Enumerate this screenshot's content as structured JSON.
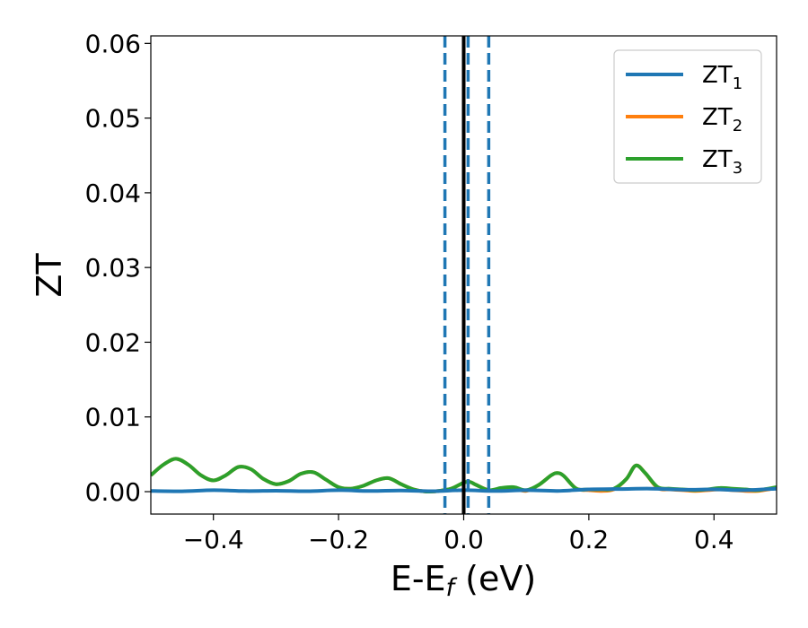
{
  "chart_data": {
    "type": "line",
    "xlabel": "E-E_f (eV)",
    "xlabel_parts": {
      "main": "E-E",
      "sub": "f",
      "tail": " (eV)"
    },
    "ylabel": "ZT",
    "xlim": [
      -0.5,
      0.5
    ],
    "ylim": [
      -0.003,
      0.061
    ],
    "x_ticks": [
      -0.4,
      -0.2,
      0.0,
      0.2,
      0.4
    ],
    "x_tick_labels": [
      "−0.4",
      "−0.2",
      "0.0",
      "0.2",
      "0.4"
    ],
    "y_ticks": [
      0.0,
      0.01,
      0.02,
      0.03,
      0.04,
      0.05,
      0.06
    ],
    "y_tick_labels": [
      "0.00",
      "0.01",
      "0.02",
      "0.03",
      "0.04",
      "0.05",
      "0.06"
    ],
    "grid": false,
    "legend_position": "top-right",
    "vertical_lines": [
      {
        "x": 0.0,
        "style": "solid",
        "color": "#000000"
      },
      {
        "x": -0.03,
        "style": "dashed",
        "color": "#1f77b4"
      },
      {
        "x": 0.007,
        "style": "dashed",
        "color": "#1f77b4"
      },
      {
        "x": 0.04,
        "style": "dashed",
        "color": "#1f77b4"
      }
    ],
    "series": [
      {
        "name": "ZT_1",
        "legend_main": "ZT",
        "legend_sub": "1",
        "color": "#1f77b4",
        "x": [
          -0.5,
          -0.45,
          -0.4,
          -0.35,
          -0.3,
          -0.25,
          -0.2,
          -0.15,
          -0.1,
          -0.05,
          0.0,
          0.05,
          0.1,
          0.15,
          0.2,
          0.25,
          0.3,
          0.35,
          0.4,
          0.45,
          0.5
        ],
        "y": [
          0.0001,
          5e-05,
          0.0002,
          8e-05,
          0.00012,
          6e-05,
          0.0002,
          8e-05,
          0.00015,
          6e-05,
          0.0002,
          8e-05,
          0.0002,
          0.0001,
          0.0003,
          0.00035,
          0.0004,
          0.00025,
          0.0003,
          0.0002,
          0.0004
        ]
      },
      {
        "name": "ZT_2",
        "legend_main": "ZT",
        "legend_sub": "2",
        "color": "#ff7f0e",
        "x": [
          -0.5,
          -0.48,
          -0.46,
          -0.44,
          -0.42,
          -0.4,
          -0.38,
          -0.36,
          -0.34,
          -0.32,
          -0.3,
          -0.28,
          -0.26,
          -0.24,
          -0.22,
          -0.2,
          -0.18,
          -0.16,
          -0.14,
          -0.12,
          -0.1,
          -0.08,
          -0.06,
          -0.04,
          -0.02,
          0.0,
          0.01,
          0.02,
          0.04,
          0.06,
          0.08,
          0.1,
          0.12,
          0.14,
          0.15,
          0.16,
          0.18,
          0.2,
          0.22,
          0.24,
          0.26,
          0.275,
          0.29,
          0.31,
          0.33,
          0.35,
          0.37,
          0.39,
          0.41,
          0.43,
          0.45,
          0.47,
          0.5
        ],
        "y": [
          0.0022,
          0.0036,
          0.0044,
          0.0036,
          0.0022,
          0.0015,
          0.0022,
          0.0033,
          0.003,
          0.0017,
          0.001,
          0.0014,
          0.0024,
          0.0026,
          0.0016,
          0.0006,
          0.0004,
          0.0008,
          0.0015,
          0.0018,
          0.001,
          0.0003,
          0.0,
          0.0001,
          0.0004,
          0.0012,
          0.0013,
          0.0009,
          0.0002,
          0.0002,
          0.0004,
          0.0001,
          0.0009,
          0.0022,
          0.0025,
          0.0021,
          0.0004,
          0.0002,
          0.0001,
          0.0003,
          0.0017,
          0.0035,
          0.0025,
          0.0005,
          0.0003,
          0.0002,
          0.0001,
          0.0002,
          0.0003,
          0.0002,
          0.0001,
          0.0001,
          0.0005
        ]
      },
      {
        "name": "ZT_3",
        "legend_main": "ZT",
        "legend_sub": "3",
        "color": "#2ca02c",
        "x": [
          -0.5,
          -0.48,
          -0.46,
          -0.44,
          -0.42,
          -0.4,
          -0.38,
          -0.36,
          -0.34,
          -0.32,
          -0.3,
          -0.28,
          -0.26,
          -0.24,
          -0.22,
          -0.2,
          -0.18,
          -0.16,
          -0.14,
          -0.12,
          -0.1,
          -0.08,
          -0.06,
          -0.04,
          -0.02,
          0.0,
          0.01,
          0.02,
          0.04,
          0.06,
          0.08,
          0.1,
          0.12,
          0.14,
          0.15,
          0.16,
          0.18,
          0.2,
          0.22,
          0.24,
          0.26,
          0.275,
          0.29,
          0.31,
          0.33,
          0.35,
          0.37,
          0.39,
          0.41,
          0.43,
          0.45,
          0.47,
          0.5
        ],
        "y": [
          0.0022,
          0.0036,
          0.0044,
          0.0036,
          0.0022,
          0.0015,
          0.0022,
          0.0033,
          0.003,
          0.0017,
          0.001,
          0.0014,
          0.0024,
          0.0026,
          0.0016,
          0.0006,
          0.0004,
          0.0008,
          0.0015,
          0.0018,
          0.001,
          0.0003,
          0.0,
          0.0001,
          0.0004,
          0.0012,
          0.0013,
          0.0009,
          0.0002,
          0.0005,
          0.0006,
          0.0002,
          0.0009,
          0.0022,
          0.0025,
          0.0021,
          0.0004,
          0.0003,
          0.0003,
          0.0004,
          0.0017,
          0.0035,
          0.0025,
          0.0006,
          0.0004,
          0.0003,
          0.0002,
          0.0003,
          0.0005,
          0.0004,
          0.0003,
          0.0002,
          0.0006
        ]
      }
    ]
  }
}
